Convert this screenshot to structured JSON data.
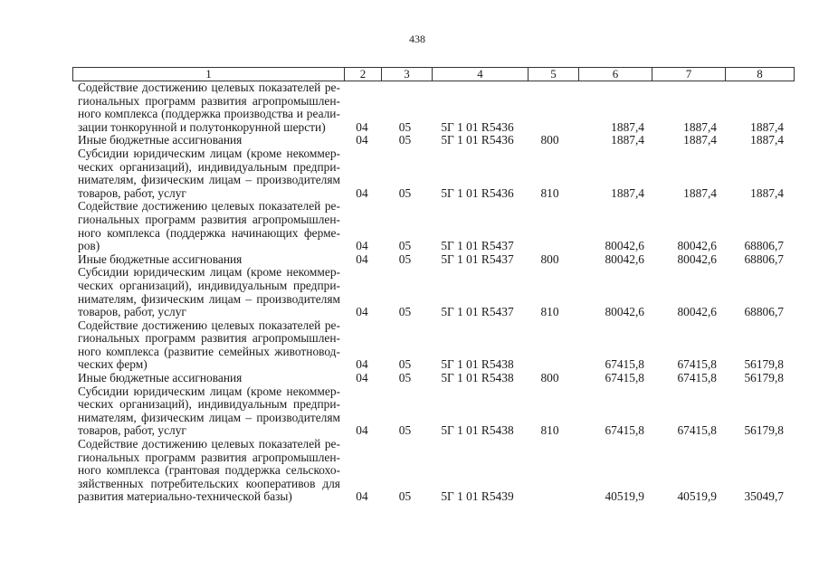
{
  "page_number": "438",
  "header": [
    "1",
    "2",
    "3",
    "4",
    "5",
    "6",
    "7",
    "8"
  ],
  "rows": [
    {
      "lines": [
        "Содействие достижению целевых показателей ре-",
        "гиональных программ развития агропромышлен-",
        "ного комплекса (поддержка производства и реали-",
        "зации тонкорунной и полутонкорунной шерсти)"
      ],
      "c2": "04",
      "c3": "05",
      "c4": "5Г 1 01 R5436",
      "c5": "",
      "c6": "1887,4",
      "c7": "1887,4",
      "c8": "1887,4"
    },
    {
      "lines": [
        "Иные бюджетные ассигнования"
      ],
      "c2": "04",
      "c3": "05",
      "c4": "5Г 1 01 R5436",
      "c5": "800",
      "c6": "1887,4",
      "c7": "1887,4",
      "c8": "1887,4"
    },
    {
      "lines": [
        "Субсидии юридическим лицам (кроме некоммер-",
        "ческих организаций), индивидуальным предпри-",
        "нимателям, физическим лицам – производителям",
        "товаров, работ, услуг"
      ],
      "c2": "04",
      "c3": "05",
      "c4": "5Г 1 01 R5436",
      "c5": "810",
      "c6": "1887,4",
      "c7": "1887,4",
      "c8": "1887,4"
    },
    {
      "lines": [
        "Содействие достижению целевых показателей ре-",
        "гиональных программ развития агропромышлен-",
        "ного комплекса (поддержка начинающих ферме-",
        "ров)"
      ],
      "c2": "04",
      "c3": "05",
      "c4": "5Г 1 01 R5437",
      "c5": "",
      "c6": "80042,6",
      "c7": "80042,6",
      "c8": "68806,7"
    },
    {
      "lines": [
        "Иные бюджетные ассигнования"
      ],
      "c2": "04",
      "c3": "05",
      "c4": "5Г 1 01 R5437",
      "c5": "800",
      "c6": "80042,6",
      "c7": "80042,6",
      "c8": "68806,7"
    },
    {
      "lines": [
        "Субсидии юридическим лицам (кроме некоммер-",
        "ческих организаций), индивидуальным предпри-",
        "нимателям, физическим лицам – производителям",
        "товаров, работ, услуг"
      ],
      "c2": "04",
      "c3": "05",
      "c4": "5Г 1 01 R5437",
      "c5": "810",
      "c6": "80042,6",
      "c7": "80042,6",
      "c8": "68806,7"
    },
    {
      "lines": [
        "Содействие достижению целевых показателей ре-",
        "гиональных программ развития агропромышлен-",
        "ного комплекса (развитие семейных животновод-",
        "ческих ферм)"
      ],
      "c2": "04",
      "c3": "05",
      "c4": "5Г 1 01 R5438",
      "c5": "",
      "c6": "67415,8",
      "c7": "67415,8",
      "c8": "56179,8"
    },
    {
      "lines": [
        "Иные бюджетные ассигнования"
      ],
      "c2": "04",
      "c3": "05",
      "c4": "5Г 1 01 R5438",
      "c5": "800",
      "c6": "67415,8",
      "c7": "67415,8",
      "c8": "56179,8"
    },
    {
      "lines": [
        "Субсидии юридическим лицам (кроме некоммер-",
        "ческих организаций), индивидуальным предпри-",
        "нимателям, физическим лицам – производителям",
        "товаров, работ, услуг"
      ],
      "c2": "04",
      "c3": "05",
      "c4": "5Г 1 01 R5438",
      "c5": "810",
      "c6": "67415,8",
      "c7": "67415,8",
      "c8": "56179,8"
    },
    {
      "lines": [
        "Содействие достижению целевых показателей ре-",
        "гиональных программ развития агропромышлен-",
        "ного комплекса (грантовая поддержка сельскохо-",
        "зяйственных потребительских кооперативов для",
        "развития материально-технической базы)"
      ],
      "c2": "04",
      "c3": "05",
      "c4": "5Г 1 01 R5439",
      "c5": "",
      "c6": "40519,9",
      "c7": "40519,9",
      "c8": "35049,7"
    }
  ]
}
